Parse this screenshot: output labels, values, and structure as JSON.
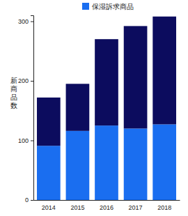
{
  "chart_data": {
    "type": "bar",
    "stacked": true,
    "legend": "top",
    "y_label": "新商品数",
    "categories": [
      "2014",
      "2015",
      "2016",
      "2017",
      "2018"
    ],
    "series": [
      {
        "name": "保湿訴求商品",
        "color": "#1a6ef0",
        "values": [
          91,
          116,
          125,
          120,
          127
        ]
      },
      {
        "color": "#0c0c5e",
        "values": [
          81,
          79,
          145,
          172,
          181
        ]
      }
    ],
    "ylim": [
      0,
      310
    ],
    "yticks": [
      0,
      100,
      200,
      300
    ]
  }
}
